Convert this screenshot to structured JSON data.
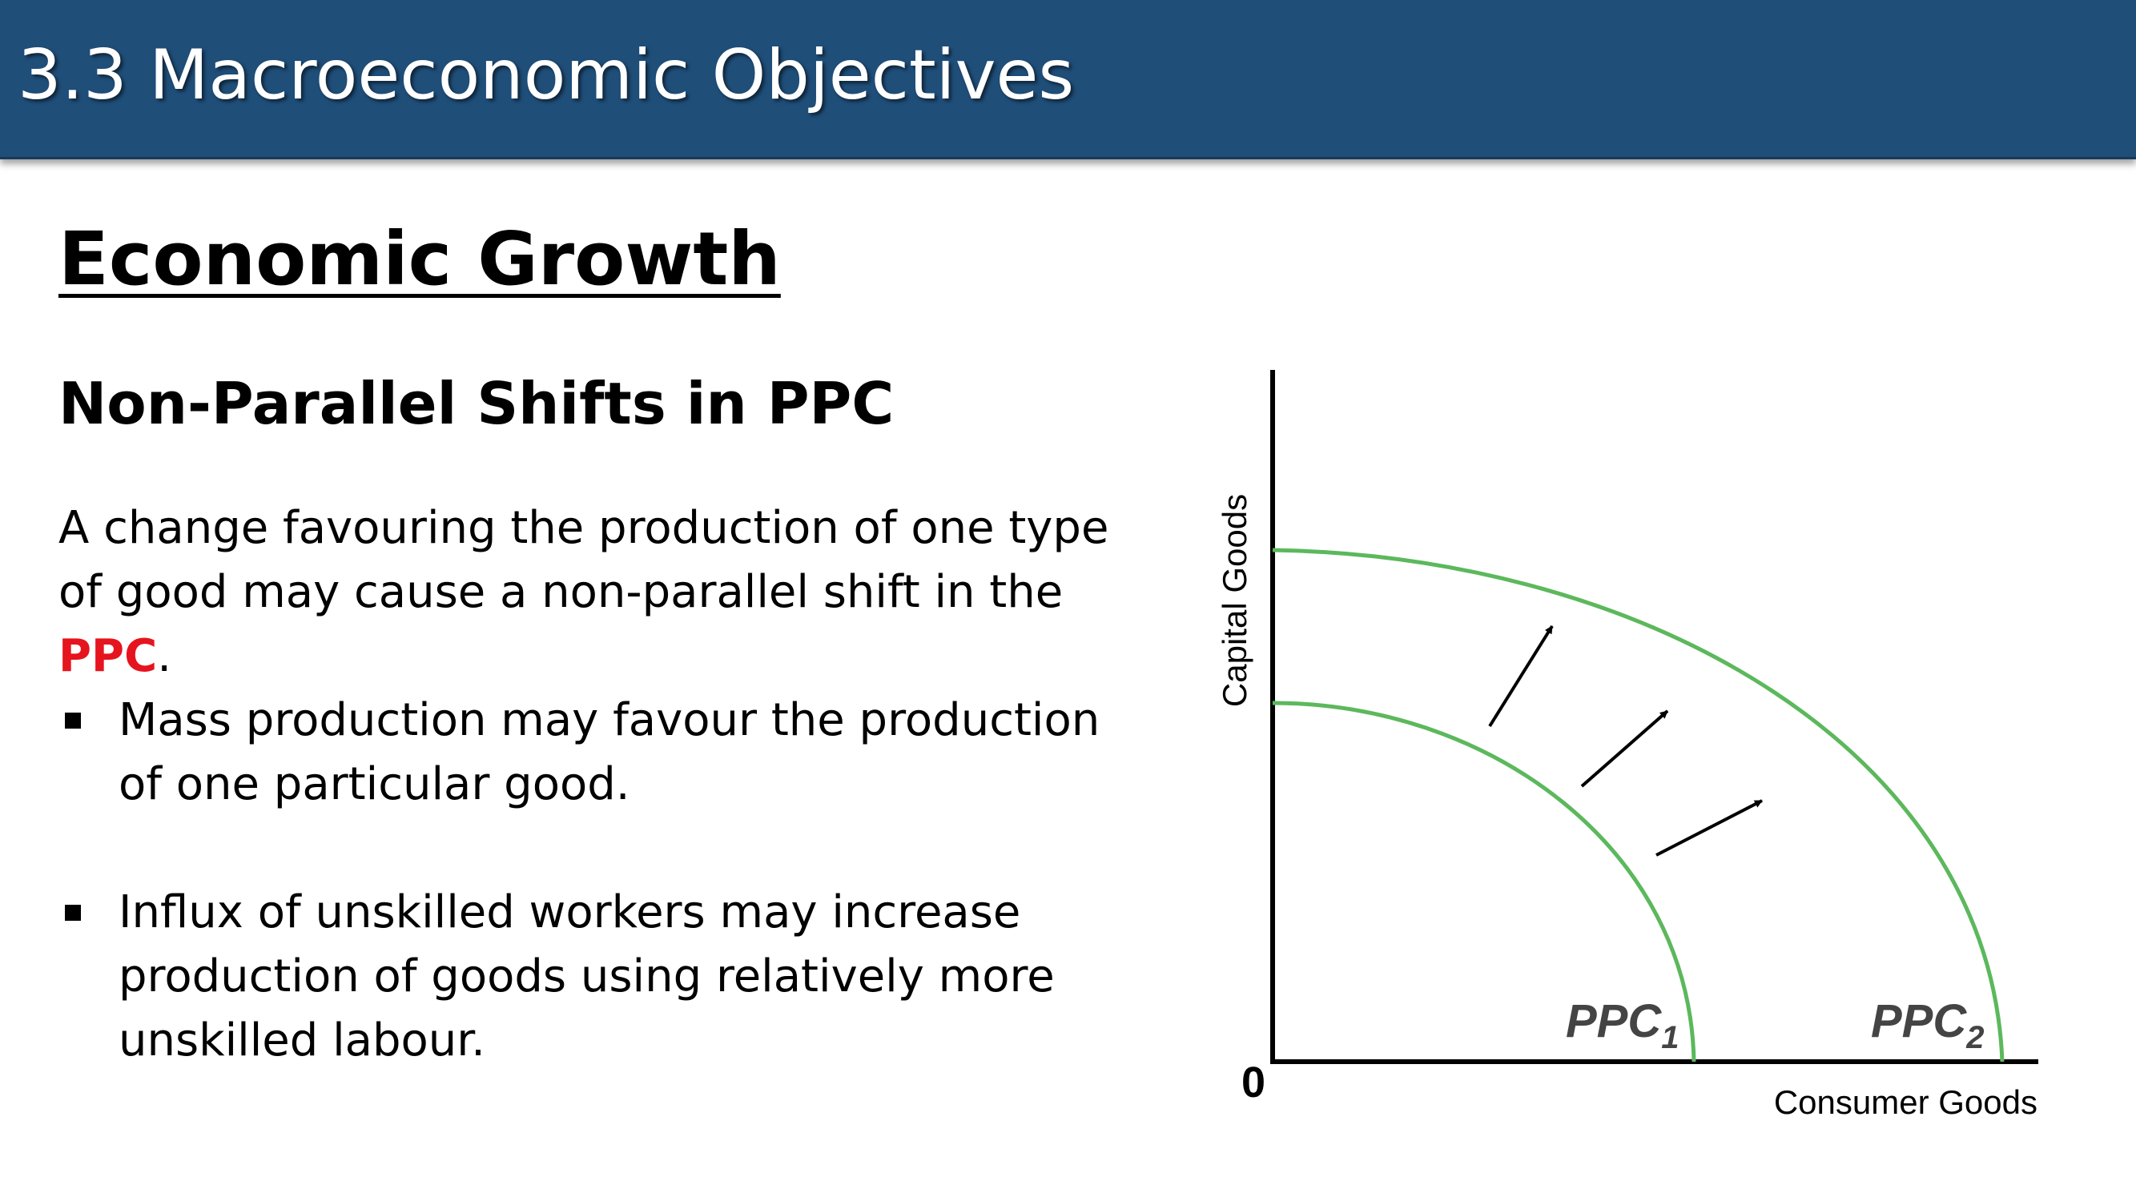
{
  "slide": {
    "title": "3.3 Macroeconomic Objectives",
    "heading": "Economic Growth",
    "subheading": "Non-Parallel Shifts in PPC",
    "paragraph": {
      "text_before": "A change favouring the production of one type of good may cause a non-parallel shift in the ",
      "highlight": "PPC",
      "text_after": "."
    },
    "bullets": [
      "Mass production may favour the production of one particular good.",
      "Influx of unskilled workers may increase production of goods using relatively more unskilled labour."
    ]
  },
  "diagram": {
    "y_axis_label": "Capital Goods",
    "x_axis_label": "Consumer Goods",
    "origin_label": "0",
    "curves": [
      {
        "base": "PPC",
        "sub": "1"
      },
      {
        "base": "PPC",
        "sub": "2"
      }
    ],
    "colors": {
      "curve": "#5cb85c",
      "axis": "#000000",
      "arrow": "#000000",
      "accent": "#e5141e",
      "title_bar": "#1f4e79"
    }
  }
}
